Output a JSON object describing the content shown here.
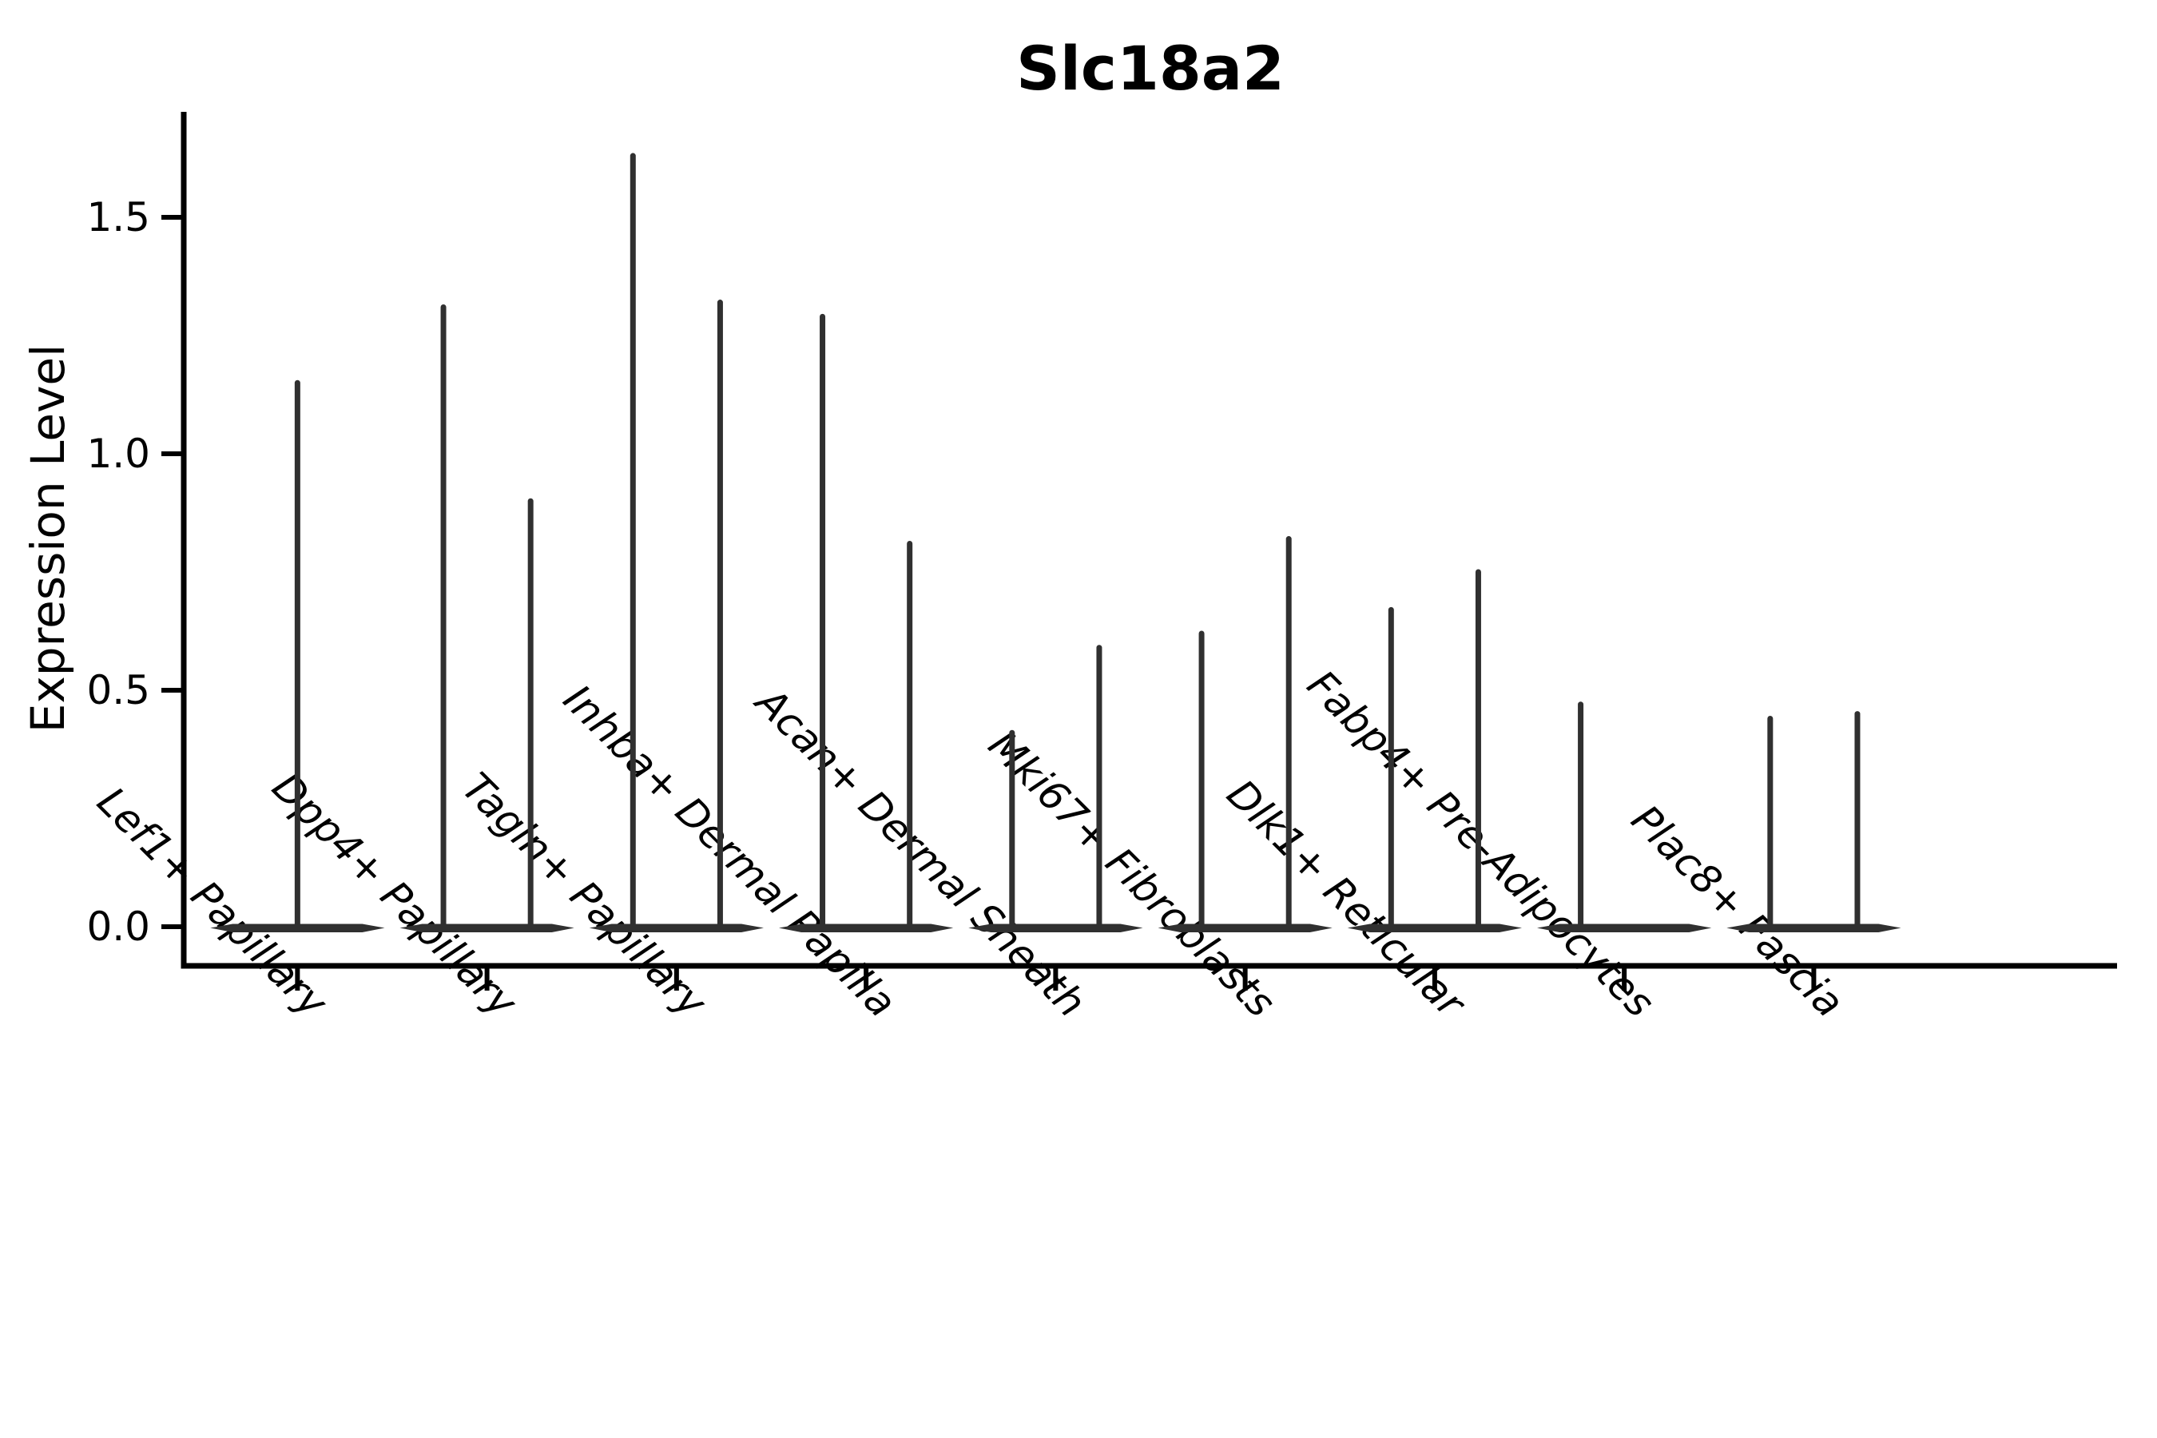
{
  "chart_data": {
    "type": "violin",
    "title": "Slc18a2",
    "ylabel": "Expression Level",
    "xlabel": "",
    "yticks": [
      "0.0",
      "0.5",
      "1.0",
      "1.5"
    ],
    "ylim": [
      -0.083,
      1.723
    ],
    "grid": false,
    "legend": "none",
    "violin_color": "#303030",
    "baseline_value": 0.0,
    "base_halfwidth_frac": 0.46,
    "categories": [
      "Lef1+ Papillary",
      "Dpp4+ Papillary",
      "Tagln+ Papillary",
      "Inhba+ Dermal Papilla",
      "Acan+ Dermal Sheath",
      "Mki67+ Fibroblasts",
      "Dlk1+ Reticular",
      "Fabp4+ Pre-Adipocytes",
      "Plac8+ Fascia"
    ],
    "series": [
      {
        "category": "Lef1+ Papillary",
        "violins": [
          {
            "offset": 0.0,
            "max": 1.15
          }
        ]
      },
      {
        "category": "Dpp4+ Papillary",
        "violins": [
          {
            "offset": -0.23,
            "max": 1.31
          },
          {
            "offset": 0.23,
            "max": 0.9
          }
        ]
      },
      {
        "category": "Tagln+ Papillary",
        "violins": [
          {
            "offset": -0.23,
            "max": 1.63
          },
          {
            "offset": 0.23,
            "max": 1.32
          }
        ]
      },
      {
        "category": "Inhba+ Dermal Papilla",
        "violins": [
          {
            "offset": -0.23,
            "max": 1.29
          },
          {
            "offset": 0.23,
            "max": 0.81
          }
        ]
      },
      {
        "category": "Acan+ Dermal Sheath",
        "violins": [
          {
            "offset": -0.23,
            "max": 0.41
          },
          {
            "offset": 0.23,
            "max": 0.59
          }
        ]
      },
      {
        "category": "Mki67+ Fibroblasts",
        "violins": [
          {
            "offset": -0.23,
            "max": 0.62
          },
          {
            "offset": 0.23,
            "max": 0.82
          }
        ]
      },
      {
        "category": "Dlk1+ Reticular",
        "violins": [
          {
            "offset": -0.23,
            "max": 0.67
          },
          {
            "offset": 0.23,
            "max": 0.75
          }
        ]
      },
      {
        "category": "Fabp4+ Pre-Adipocytes",
        "violins": [
          {
            "offset": -0.23,
            "max": 0.47
          }
        ]
      },
      {
        "category": "Plac8+ Fascia",
        "violins": [
          {
            "offset": -0.23,
            "max": 0.44
          },
          {
            "offset": 0.23,
            "max": 0.45
          }
        ]
      }
    ]
  }
}
